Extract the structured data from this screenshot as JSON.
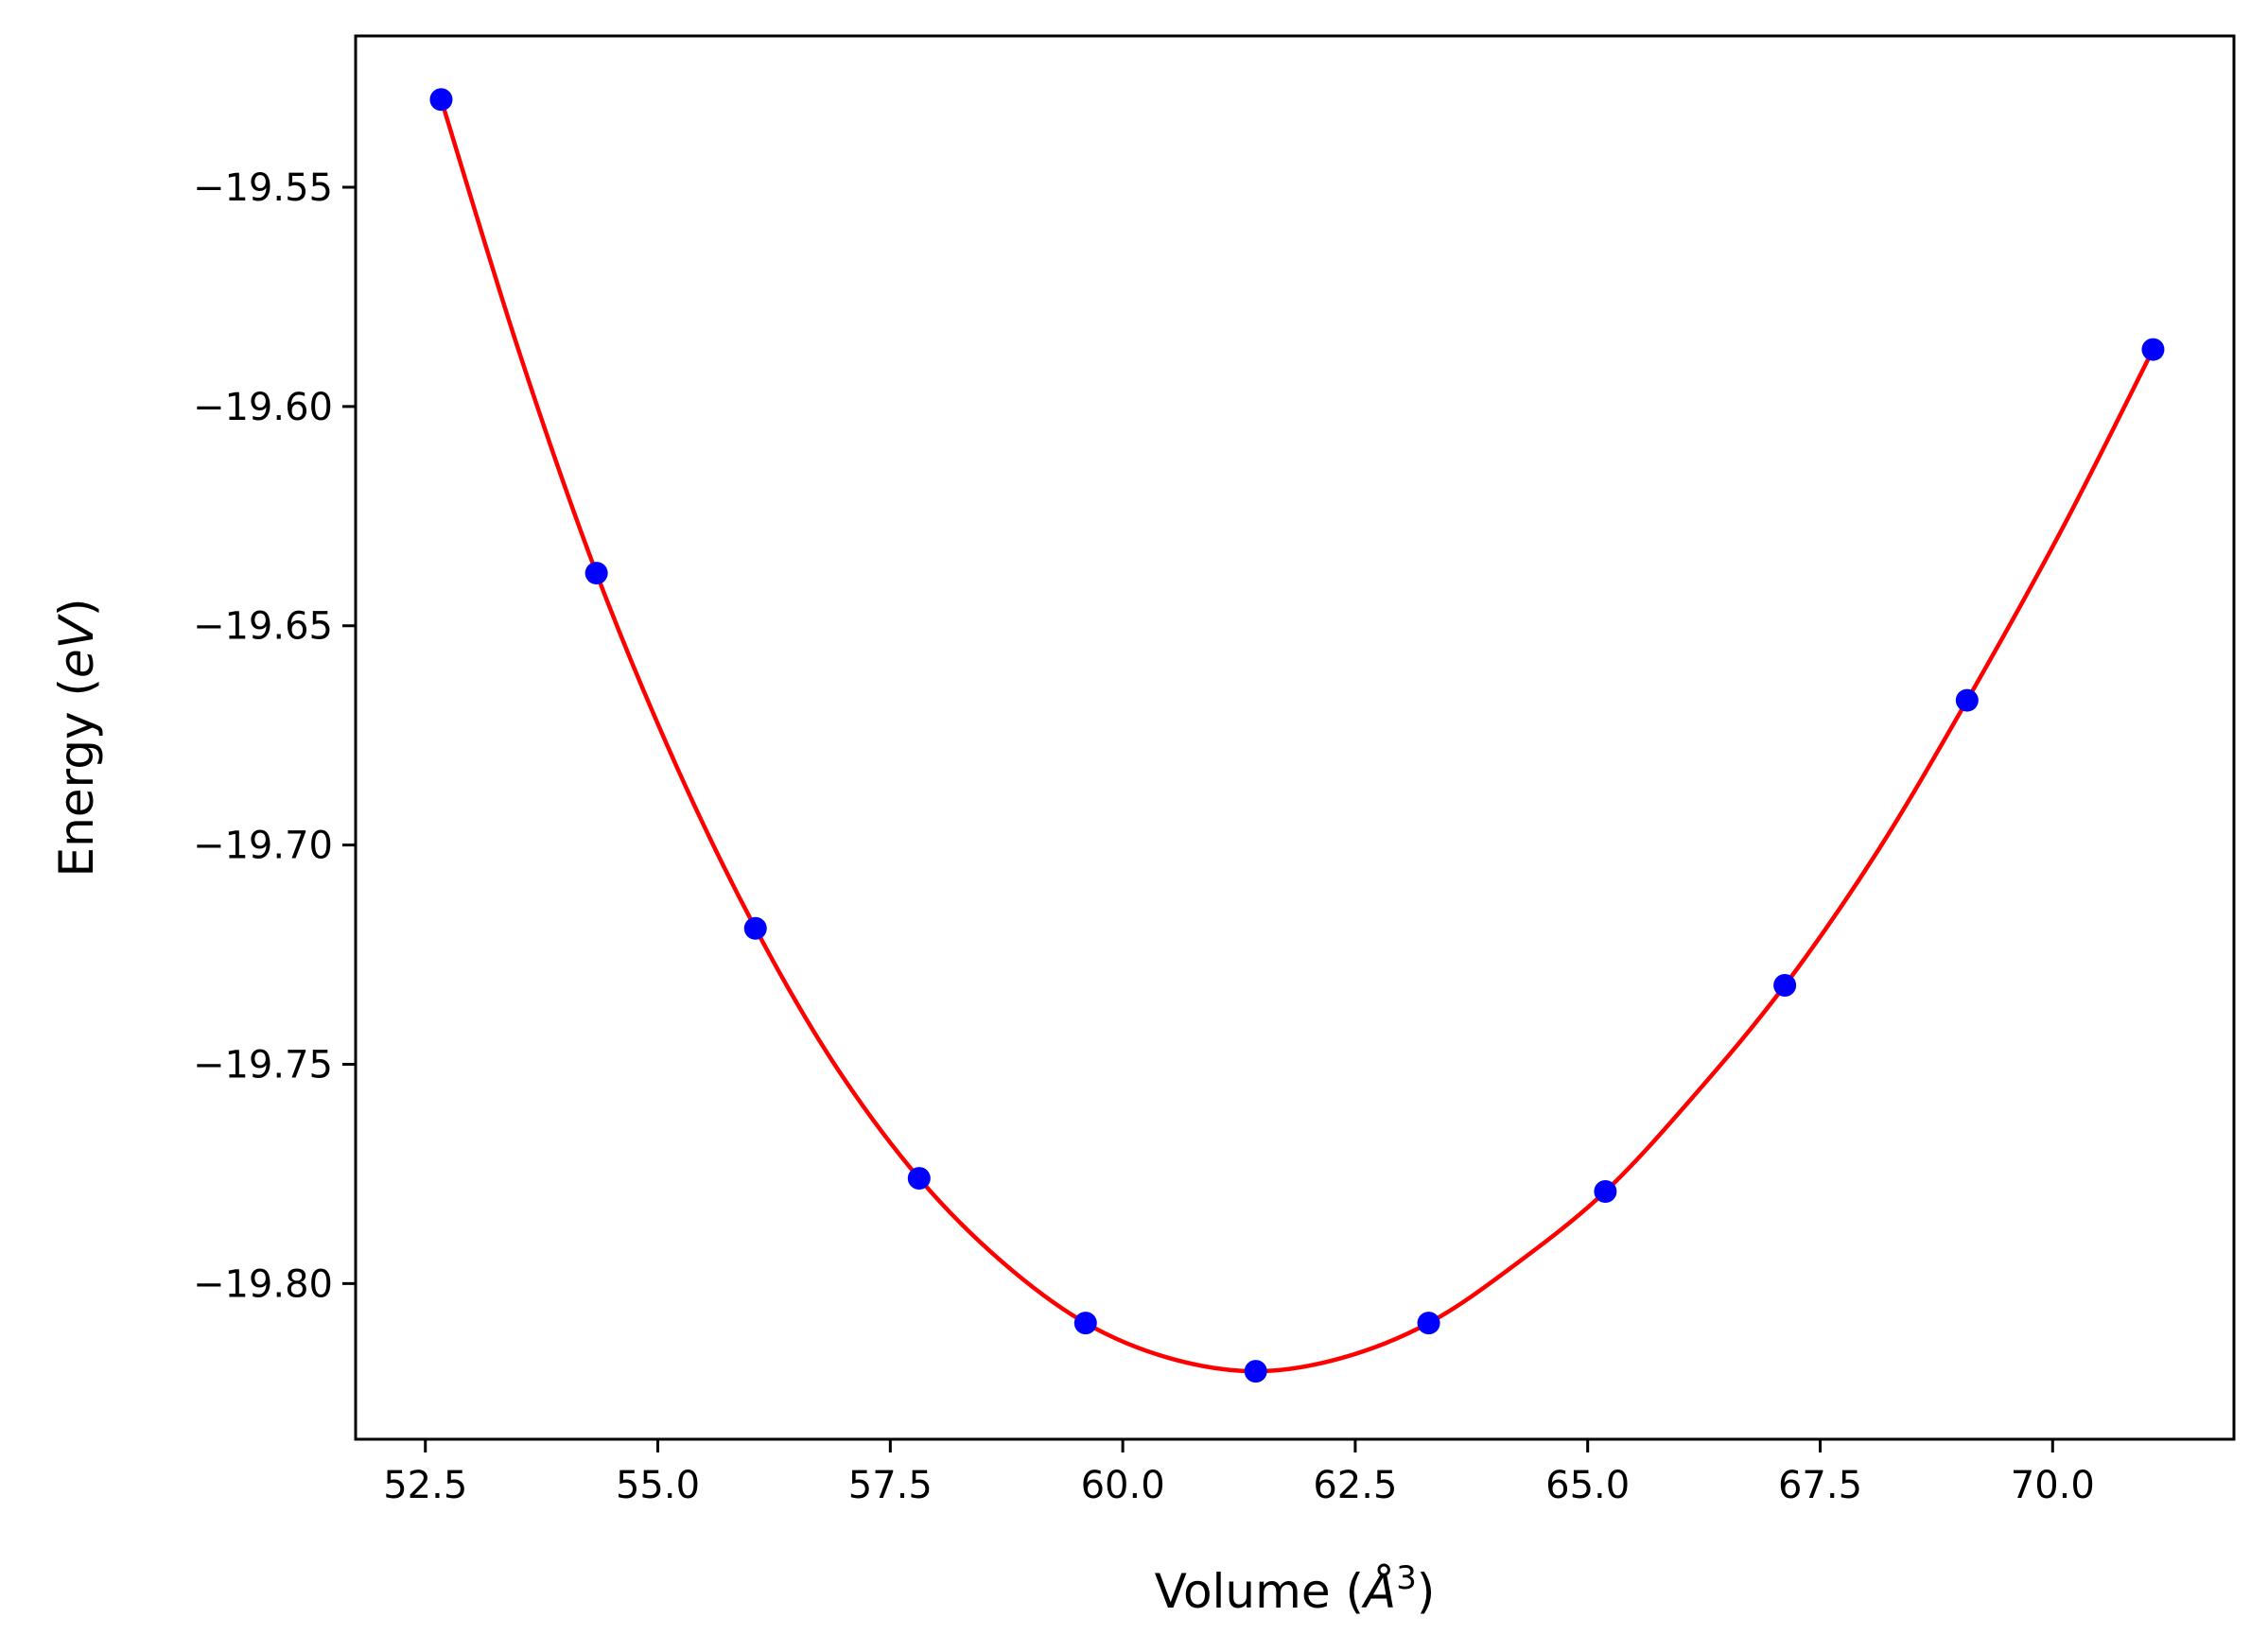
{
  "chart_data": {
    "type": "scatter",
    "title": "",
    "xlabel": "Volume (",
    "xlabel_math": "Å",
    "xlabel_sup": "3",
    "xlabel_close": ")",
    "ylabel": "Energy (",
    "ylabel_math": "eV",
    "ylabel_close": ")",
    "xlim": [
      51.75,
      71.95
    ],
    "ylim": [
      -19.8355,
      -19.5155
    ],
    "x_ticks": [
      52.5,
      55.0,
      57.5,
      60.0,
      62.5,
      65.0,
      67.5,
      70.0
    ],
    "x_tick_labels": [
      "52.5",
      "55.0",
      "57.5",
      "60.0",
      "62.5",
      "65.0",
      "67.5",
      "70.0"
    ],
    "y_ticks": [
      -19.55,
      -19.6,
      -19.65,
      -19.7,
      -19.75,
      -19.8
    ],
    "y_tick_labels": [
      "−19.55",
      "−19.60",
      "−19.65",
      "−19.70",
      "−19.75",
      "−19.80"
    ],
    "grid": false,
    "series": [
      {
        "kind": "points",
        "color": "#0000ff",
        "x": [
          52.67,
          54.34,
          56.05,
          57.81,
          59.6,
          61.43,
          63.29,
          65.19,
          67.12,
          69.08,
          71.08
        ],
        "y": [
          -19.53,
          -19.638,
          -19.719,
          -19.776,
          -19.809,
          -19.82,
          -19.809,
          -19.779,
          -19.732,
          -19.667,
          -19.587
        ]
      },
      {
        "kind": "fit-line",
        "color": "#ff0000",
        "x": [
          52.67,
          53.5,
          54.34,
          55.2,
          56.05,
          56.9,
          57.81,
          58.7,
          59.6,
          60.5,
          61.43,
          62.35,
          63.29,
          64.2,
          65.19,
          66.15,
          67.12,
          68.1,
          69.08,
          70.1,
          71.08
        ],
        "y": [
          -19.53,
          -19.587,
          -19.638,
          -19.682,
          -19.719,
          -19.75,
          -19.776,
          -19.795,
          -19.809,
          -19.817,
          -19.82,
          -19.817,
          -19.809,
          -19.796,
          -19.779,
          -19.757,
          -19.732,
          -19.702,
          -19.667,
          -19.628,
          -19.587
        ]
      }
    ]
  }
}
